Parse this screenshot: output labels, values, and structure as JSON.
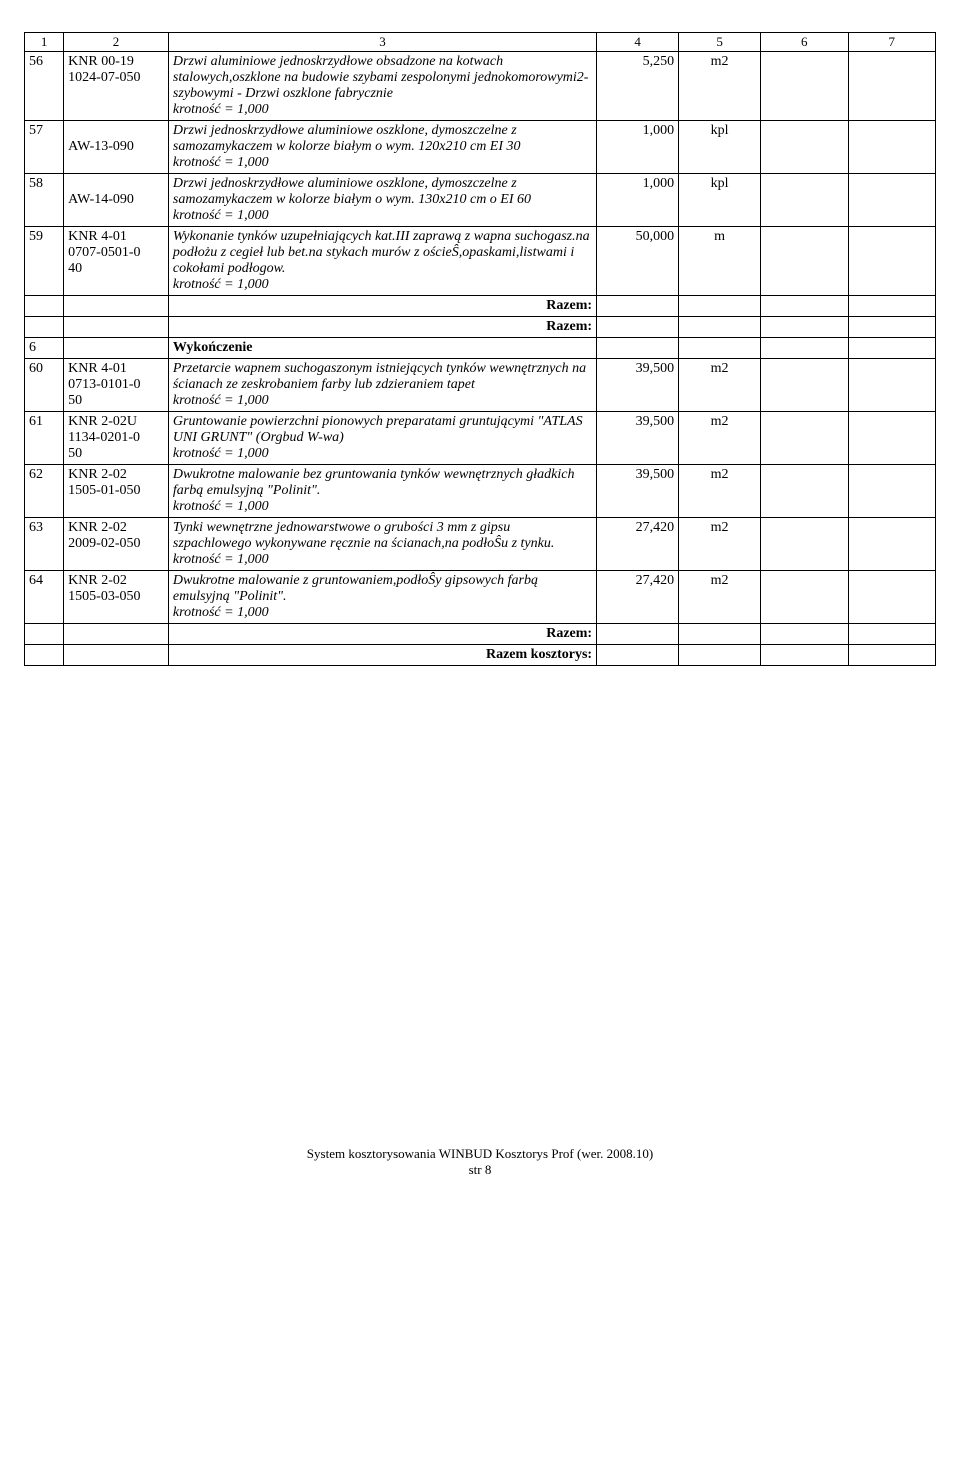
{
  "header_cols": [
    "1",
    "2",
    "3",
    "4",
    "5",
    "6",
    "7"
  ],
  "rows": [
    {
      "type": "item",
      "num": "56",
      "code": "KNR 00-19\n1024-07-050",
      "desc": "Drzwi aluminiowe jednoskrzydłowe obsadzone na kotwach stalowych,oszklone na budowie szybami zespolonymi jednokomorowymi2-szybowymi - Drzwi oszklone fabrycznie\nkrotność = 1,000",
      "qty": "5,250",
      "unit": "m2",
      "italic": true
    },
    {
      "type": "item",
      "num": "57",
      "code": "\nAW-13-090",
      "desc": "Drzwi jednoskrzydłowe aluminiowe oszklone, dymoszczelne z samozamykaczem w kolorze białym o wym. 120x210 cm EI 30\nkrotność = 1,000",
      "qty": "1,000",
      "unit": "kpl",
      "italic": true
    },
    {
      "type": "item",
      "num": "58",
      "code": "\nAW-14-090",
      "desc": "Drzwi jednoskrzydłowe aluminiowe oszklone, dymoszczelne z samozamykaczem w kolorze białym o wym. 130x210 cm o EI 60\nkrotność = 1,000",
      "qty": "1,000",
      "unit": "kpl",
      "italic": true
    },
    {
      "type": "item",
      "num": "59",
      "code": "KNR 4-01\n0707-0501-0\n40",
      "desc": "Wykonanie tynków uzupełniających kat.III zaprawą z wapna suchogasz.na podłożu z cegieł lub bet.na stykach murów z ościeŜ,opaskami,listwami i cokołami podłogow.\nkrotność = 1,000",
      "qty": "50,000",
      "unit": "m",
      "italic": true
    },
    {
      "type": "razem",
      "label": "Razem:"
    },
    {
      "type": "razem",
      "label": "Razem:"
    },
    {
      "type": "section",
      "num": "6",
      "desc": "Wykończenie"
    },
    {
      "type": "item",
      "num": "60",
      "code": "KNR 4-01\n0713-0101-0\n50",
      "desc": "Przetarcie wapnem suchogaszonym istniejących tynków wewnętrznych na ścianach ze zeskrobaniem farby lub zdzieraniem tapet\nkrotność = 1,000",
      "qty": "39,500",
      "unit": "m2",
      "italic": true
    },
    {
      "type": "item",
      "num": "61",
      "code": "KNR 2-02U\n1134-0201-0\n50",
      "desc": "Gruntowanie powierzchni pionowych preparatami gruntującymi \"ATLAS UNI GRUNT\" (Orgbud W-wa)\nkrotność = 1,000",
      "qty": "39,500",
      "unit": "m2",
      "italic": true
    },
    {
      "type": "item",
      "num": "62",
      "code": "KNR 2-02\n1505-01-050",
      "desc": "Dwukrotne malowanie bez gruntowania tynków wewnętrznych gładkich farbą emulsyjną \"Polinit\".\nkrotność = 1,000",
      "qty": "39,500",
      "unit": "m2",
      "italic": true
    },
    {
      "type": "item",
      "num": "63",
      "code": "KNR 2-02\n2009-02-050",
      "desc": "Tynki wewnętrzne jednowarstwowe o grubości 3 mm z gipsu szpachlowego wykonywane ręcznie na ścianach,na podłoŜu z tynku.\nkrotność = 1,000",
      "qty": "27,420",
      "unit": "m2",
      "italic": true
    },
    {
      "type": "item",
      "num": "64",
      "code": "KNR 2-02\n1505-03-050",
      "desc": "Dwukrotne malowanie z gruntowaniem,podłoŜy gipsowych farbą emulsyjną \"Polinit\".\nkrotność = 1,000",
      "qty": "27,420",
      "unit": "m2",
      "italic": true
    },
    {
      "type": "razem",
      "label": "Razem:"
    },
    {
      "type": "razem",
      "label": "Razem kosztorys:"
    }
  ],
  "footer_line1": "System kosztorysowania WINBUD Kosztorys Prof (wer. 2008.10)",
  "footer_line2": "str 8"
}
